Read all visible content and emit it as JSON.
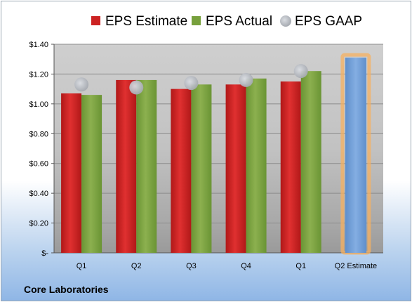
{
  "company": "Core Laboratories",
  "chart_data": {
    "type": "bar",
    "categories": [
      "Q1",
      "Q2",
      "Q3",
      "Q4",
      "Q1",
      "Q2 Estimate"
    ],
    "series": [
      {
        "name": "EPS Estimate",
        "type": "bar",
        "color": "#cc2222",
        "values": [
          1.07,
          1.16,
          1.1,
          1.13,
          1.15,
          null
        ]
      },
      {
        "name": "EPS Actual",
        "type": "bar",
        "color": "#77a03c",
        "values": [
          1.06,
          1.16,
          1.13,
          1.17,
          1.22,
          null
        ]
      },
      {
        "name": "EPS GAAP",
        "type": "scatter",
        "color": "#b8bcc2",
        "values": [
          1.13,
          1.11,
          1.14,
          1.16,
          1.22,
          null
        ]
      }
    ],
    "forecast": {
      "category": "Q2 Estimate",
      "value": 1.31,
      "color": "#6f9fd8",
      "glow": "#f5b060"
    },
    "yticks": [
      "$1.40",
      "$1.20",
      "$1.00",
      "$0.80",
      "$0.60",
      "$0.40",
      "$0.20",
      "$-"
    ],
    "ylim": [
      0,
      1.4
    ],
    "legend_position": "top",
    "grid": true
  }
}
